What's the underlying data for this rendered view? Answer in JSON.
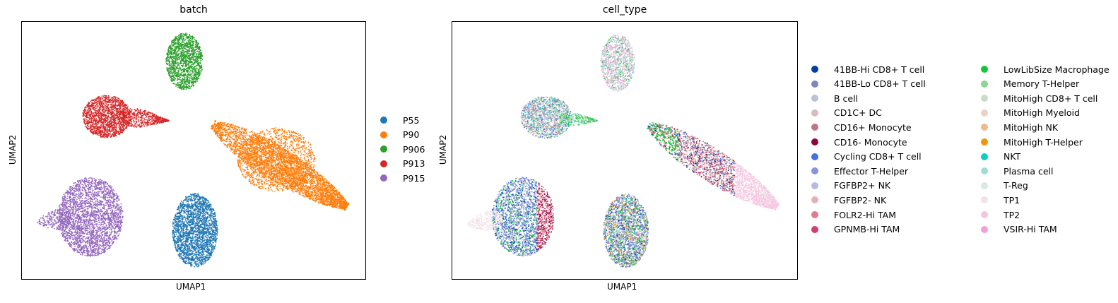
{
  "chart_data": [
    {
      "type": "scatter",
      "title": "batch",
      "xlabel": "UMAP1",
      "ylabel": "UMAP2",
      "legend_placement": "right",
      "series": [
        {
          "name": "P55",
          "color": "#1f77b4"
        },
        {
          "name": "P90",
          "color": "#ff7f0e"
        },
        {
          "name": "P906",
          "color": "#2ca02c"
        },
        {
          "name": "P913",
          "color": "#d62728"
        },
        {
          "name": "P915",
          "color": "#9467bd"
        }
      ]
    },
    {
      "type": "scatter",
      "title": "cell_type",
      "xlabel": "UMAP1",
      "ylabel": "UMAP2",
      "legend_placement": "right",
      "series": [
        {
          "name": "41BB-Hi CD8+ T cell",
          "color": "#023fa5"
        },
        {
          "name": "41BB-Lo CD8+ T cell",
          "color": "#7d87b9"
        },
        {
          "name": "B cell",
          "color": "#bec1d4"
        },
        {
          "name": "CD1C+ DC",
          "color": "#d6bcc0"
        },
        {
          "name": "CD16+ Monocyte",
          "color": "#bb7784"
        },
        {
          "name": "CD16- Monocyte",
          "color": "#8e063b"
        },
        {
          "name": "Cycling CD8+ T cell",
          "color": "#4a6fe3"
        },
        {
          "name": "Effector T-Helper",
          "color": "#8595e1"
        },
        {
          "name": "FGFBP2+ NK",
          "color": "#b5bbe3"
        },
        {
          "name": "FGFBP2- NK",
          "color": "#e6afb9"
        },
        {
          "name": "FOLR2-Hi TAM",
          "color": "#e07b91"
        },
        {
          "name": "GPNMB-Hi TAM",
          "color": "#d33f6a"
        },
        {
          "name": "LowLibSize Macrophage",
          "color": "#11c638"
        },
        {
          "name": "Memory T-Helper",
          "color": "#8dd593"
        },
        {
          "name": "MitoHigh CD8+ T cell",
          "color": "#c6dec7"
        },
        {
          "name": "MitoHigh Myeloid",
          "color": "#ead3c6"
        },
        {
          "name": "MitoHigh NK",
          "color": "#f0b98d"
        },
        {
          "name": "MitoHigh T-Helper",
          "color": "#ef9708"
        },
        {
          "name": "NKT",
          "color": "#0fcfc0"
        },
        {
          "name": "Plasma cell",
          "color": "#9cded6"
        },
        {
          "name": "T-Reg",
          "color": "#d5eae7"
        },
        {
          "name": "TP1",
          "color": "#f3e1eb"
        },
        {
          "name": "TP2",
          "color": "#f6c4e1"
        },
        {
          "name": "VSIR-Hi TAM",
          "color": "#f79cd4"
        }
      ]
    }
  ]
}
